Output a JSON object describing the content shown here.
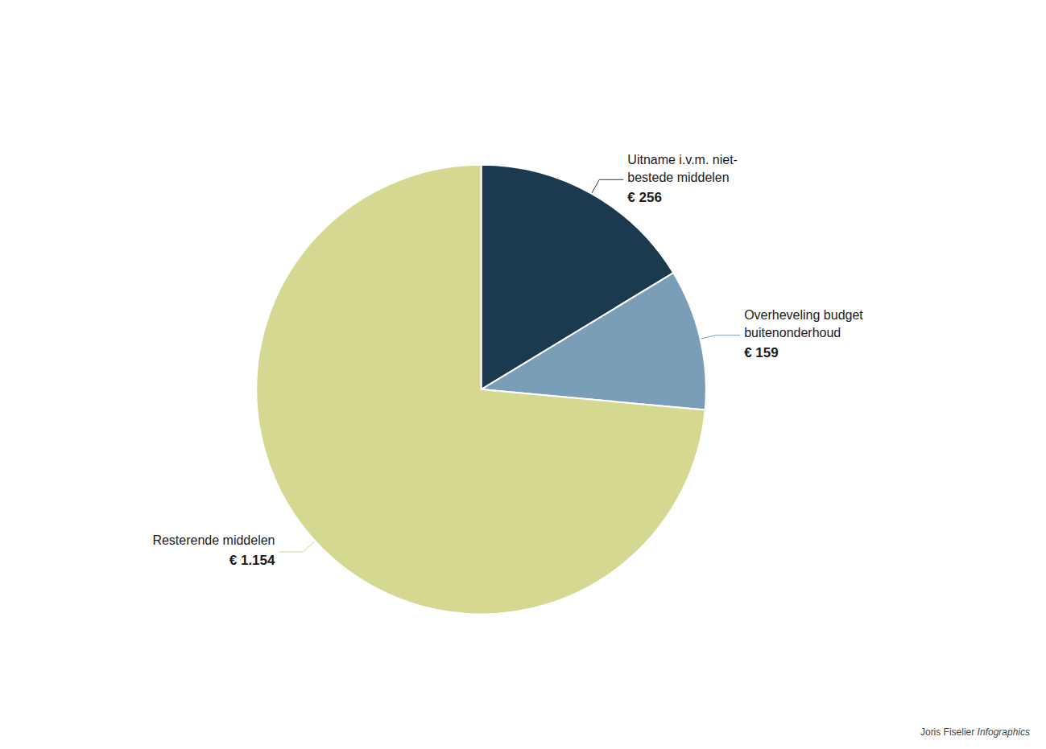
{
  "chart_data": {
    "type": "pie",
    "categories": [
      "Uitname i.v.m. niet-\nbestede middelen",
      "Overheveling budget\nbuitenonderhoud",
      "Resterende middelen"
    ],
    "values": [
      256,
      159,
      1154
    ],
    "value_labels": [
      "€ 256",
      "€ 159",
      "€ 1.154"
    ],
    "colors": [
      "#1b3a50",
      "#7a9db8",
      "#d4d890"
    ],
    "data_labels": true,
    "annotations": [
      "Joris Fiselier ",
      "Infographics"
    ]
  }
}
